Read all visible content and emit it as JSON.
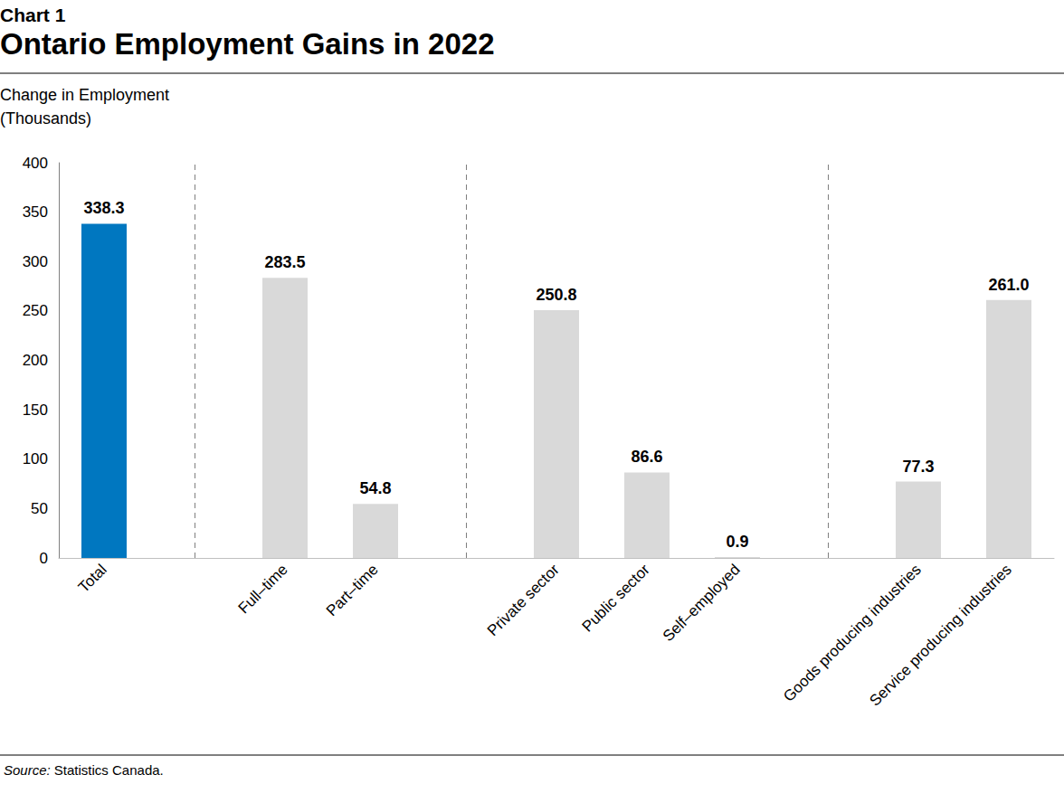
{
  "chart_data": {
    "type": "bar",
    "subtitle": "Chart 1",
    "title": "Ontario Employment Gains in 2022",
    "ylabel": "Change in Employment\n(Thousands)",
    "source": "Source: Statistics Canada.",
    "categories": [
      "Total",
      null,
      "Full–time",
      "Part–time",
      null,
      "Private sector",
      "Public sector",
      "Self–employed",
      null,
      "Goods producing industries",
      "Service producing industries"
    ],
    "values": [
      338.3,
      null,
      283.5,
      54.8,
      null,
      250.8,
      86.6,
      0.9,
      null,
      77.3,
      261.0
    ],
    "value_labels": [
      "338.3",
      null,
      "283.5",
      "54.8",
      null,
      "250.8",
      "86.6",
      "0.9",
      null,
      "77.3",
      "261.0"
    ],
    "colors": [
      "#0077c0",
      null,
      "#d9d9d9",
      "#d9d9d9",
      null,
      "#d9d9d9",
      "#d9d9d9",
      "#d9d9d9",
      null,
      "#d9d9d9",
      "#d9d9d9"
    ],
    "ylim": [
      0,
      400
    ],
    "yticks": [
      0,
      50,
      100,
      150,
      200,
      250,
      300,
      350,
      400
    ],
    "grid": false,
    "data_labels": true
  }
}
